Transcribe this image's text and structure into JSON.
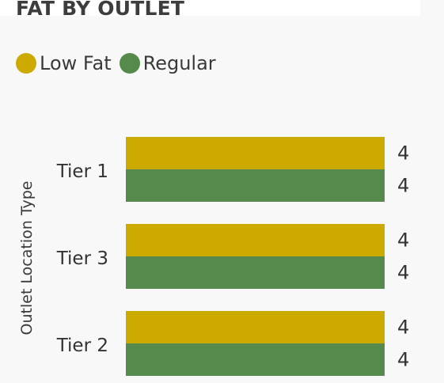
{
  "chart_data": {
    "type": "bar",
    "orientation": "horizontal",
    "title": "FAT BY OUTLET",
    "ylabel": "Outlet Location Type",
    "xlabel": "",
    "categories": [
      "Tier 1",
      "Tier 3",
      "Tier 2"
    ],
    "series": [
      {
        "name": "Low Fat",
        "color": "#ccaa00",
        "values": [
          4,
          4,
          4
        ]
      },
      {
        "name": "Regular",
        "color": "#558a4c",
        "values": [
          4,
          4,
          4
        ]
      }
    ],
    "xlim": [
      0,
      4
    ],
    "data_labels": true,
    "legend_position": "top-left",
    "grid": false
  }
}
